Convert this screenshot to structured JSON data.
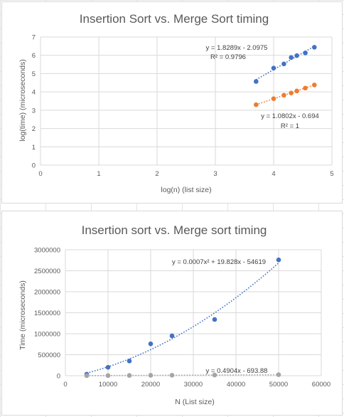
{
  "chart_data": [
    {
      "type": "scatter",
      "title": "Insertion Sort vs. Merge Sort timing",
      "xlabel": "log(n) (list size)",
      "ylabel": "log(time) (microseconds)",
      "xlim": [
        0,
        5
      ],
      "ylim": [
        0,
        7
      ],
      "xticks": [
        "0",
        "1",
        "2",
        "3",
        "4",
        "5"
      ],
      "yticks": [
        "0",
        "1",
        "2",
        "3",
        "4",
        "5",
        "6",
        "7"
      ],
      "grid": true,
      "legend": "none",
      "series": [
        {
          "color": "#4472c4",
          "x": [
            3.699,
            4.0,
            4.176,
            4.301,
            4.398,
            4.544,
            4.699
          ],
          "y": [
            4.57,
            5.3,
            5.53,
            5.88,
            5.98,
            6.13,
            6.44
          ],
          "trendline": {
            "slope": 1.8289,
            "intercept": -2.0975,
            "equation": "y = 1.8289x - 2.0975",
            "r2": "R² = 0.9796"
          }
        },
        {
          "color": "#ed7d31",
          "x": [
            3.699,
            4.0,
            4.176,
            4.301,
            4.398,
            4.544,
            4.699
          ],
          "y": [
            3.3,
            3.63,
            3.82,
            3.94,
            4.05,
            4.21,
            4.38
          ],
          "trendline": {
            "slope": 1.0802,
            "intercept": -0.694,
            "equation": "y = 1.0802x - 0.694",
            "r2": "R² = 1"
          }
        }
      ]
    },
    {
      "type": "scatter",
      "title": "Insertion sort vs. Merge sort timing",
      "xlabel": "N (List size)",
      "ylabel": "Time (microseconds)",
      "xlim": [
        0,
        60000
      ],
      "ylim": [
        0,
        3000000
      ],
      "xticks": [
        "0",
        "10000",
        "20000",
        "30000",
        "40000",
        "50000",
        "60000"
      ],
      "yticks": [
        "0",
        "500000",
        "1000000",
        "1500000",
        "2000000",
        "2500000",
        "3000000"
      ],
      "grid": true,
      "legend": "none",
      "series": [
        {
          "color": "#4472c4",
          "x": [
            5000,
            10000,
            15000,
            20000,
            25000,
            35000,
            50000
          ],
          "y": [
            37000,
            200000,
            350000,
            760000,
            950000,
            1340000,
            2760000
          ],
          "trendline": {
            "type": "poly2",
            "coefficients": [
              0.0007,
              19.828,
              -54619
            ],
            "equation": "y = 0.0007x² + 19.828x - 54619"
          }
        },
        {
          "color": "#a5a5a5",
          "x": [
            5000,
            10000,
            15000,
            20000,
            25000,
            35000,
            50000
          ],
          "y": [
            2000,
            4200,
            6700,
            9300,
            11000,
            16000,
            24000
          ],
          "trendline": {
            "slope": 0.4904,
            "intercept": -693.88,
            "equation": "y = 0.4904x - 693.88"
          }
        }
      ]
    }
  ]
}
